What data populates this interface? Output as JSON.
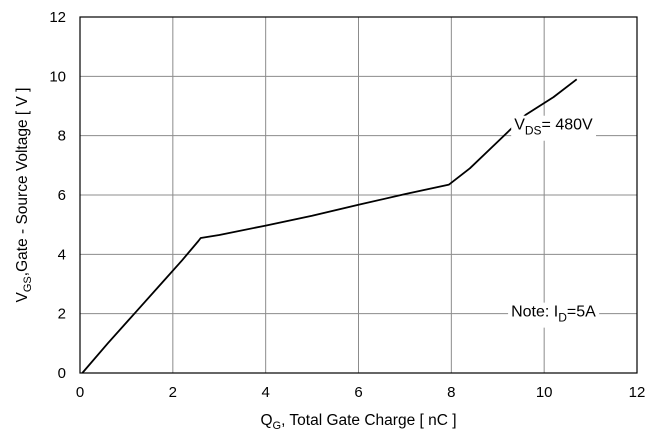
{
  "chart_data": {
    "type": "line",
    "xlabel": {
      "symbol": "Q",
      "subscript": "G",
      "text": ", Total Gate Charge [ nC ]"
    },
    "ylabel": {
      "symbol": "V",
      "subscript": "GS",
      "text": ",Gate - Source Voltage [ V ]"
    },
    "xlim": [
      0,
      12
    ],
    "ylim": [
      0,
      12
    ],
    "xticks": [
      "0",
      "2",
      "4",
      "6",
      "8",
      "10",
      "12"
    ],
    "yticks": [
      "0",
      "2",
      "4",
      "6",
      "8",
      "10",
      "12"
    ],
    "grid": true,
    "series": [
      {
        "x": [
          0.05,
          0.6,
          1.2,
          1.8,
          2.2,
          2.55,
          2.6,
          3.0,
          4.0,
          5.0,
          6.0,
          7.0,
          7.5,
          7.95,
          8.4,
          9.0,
          9.6,
          10.2,
          10.7
        ],
        "y": [
          0.0,
          1.0,
          2.05,
          3.1,
          3.8,
          4.45,
          4.55,
          4.65,
          4.97,
          5.3,
          5.67,
          6.03,
          6.2,
          6.35,
          6.9,
          7.8,
          8.7,
          9.3,
          9.9
        ]
      }
    ],
    "annotations": [
      {
        "symbol": "V",
        "subscript": "DS",
        "text": "= 480V",
        "x": 10.2,
        "y": 8.2
      },
      {
        "prefix": "Note: I",
        "subscript": "D",
        "text": "=5A",
        "x": 10.2,
        "y": 1.9
      }
    ]
  }
}
